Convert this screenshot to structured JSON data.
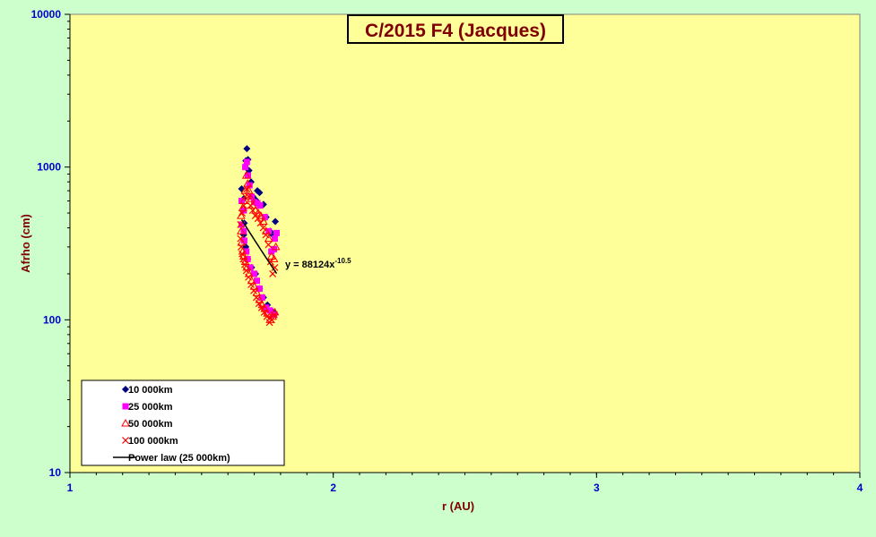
{
  "chart_data": {
    "type": "scatter",
    "title": "C/2015 F4 (Jacques)",
    "xlabel": "r (AU)",
    "ylabel": "Afrho (cm)",
    "xlim": [
      1,
      4
    ],
    "ylim": [
      10,
      10000
    ],
    "yscale": "log",
    "x_ticks": [
      "1",
      "2",
      "3",
      "4"
    ],
    "y_ticks": [
      "10",
      "100",
      "1000",
      "10000"
    ],
    "grid": false,
    "legend_position": "bottom-left",
    "colors": {
      "background": "#ccffcc",
      "plot_area": "#ffff99",
      "title_text": "#800000",
      "tick_text": "#0000cc"
    },
    "series": [
      {
        "name": "10 000km",
        "marker": "diamond",
        "color": "#000080",
        "points": [
          [
            1.652,
            720
          ],
          [
            1.66,
            620
          ],
          [
            1.668,
            1100
          ],
          [
            1.672,
            1320
          ],
          [
            1.676,
            1120
          ],
          [
            1.68,
            950
          ],
          [
            1.688,
            800
          ],
          [
            1.695,
            640
          ],
          [
            1.705,
            610
          ],
          [
            1.712,
            700
          ],
          [
            1.72,
            680
          ],
          [
            1.735,
            570
          ],
          [
            1.745,
            470
          ],
          [
            1.76,
            380
          ],
          [
            1.78,
            440
          ],
          [
            1.77,
            360
          ],
          [
            1.662,
            430
          ],
          [
            1.66,
            360
          ],
          [
            1.668,
            300
          ],
          [
            1.675,
            250
          ],
          [
            1.69,
            220
          ],
          [
            1.705,
            200
          ],
          [
            1.72,
            160
          ],
          [
            1.735,
            140
          ],
          [
            1.75,
            125
          ],
          [
            1.765,
            115
          ],
          [
            1.778,
            110
          ]
        ]
      },
      {
        "name": "25 000km",
        "marker": "square",
        "color": "#ff00ff",
        "points": [
          [
            1.652,
            600
          ],
          [
            1.66,
            520
          ],
          [
            1.666,
            1000
          ],
          [
            1.672,
            1080
          ],
          [
            1.676,
            880
          ],
          [
            1.682,
            760
          ],
          [
            1.69,
            640
          ],
          [
            1.7,
            590
          ],
          [
            1.712,
            580
          ],
          [
            1.722,
            560
          ],
          [
            1.74,
            470
          ],
          [
            1.755,
            380
          ],
          [
            1.765,
            280
          ],
          [
            1.775,
            290
          ],
          [
            1.785,
            370
          ],
          [
            1.778,
            340
          ],
          [
            1.652,
            420
          ],
          [
            1.66,
            380
          ],
          [
            1.662,
            330
          ],
          [
            1.67,
            280
          ],
          [
            1.675,
            250
          ],
          [
            1.685,
            220
          ],
          [
            1.7,
            200
          ],
          [
            1.71,
            180
          ],
          [
            1.72,
            160
          ],
          [
            1.73,
            140
          ],
          [
            1.745,
            120
          ],
          [
            1.76,
            115
          ],
          [
            1.775,
            108
          ]
        ]
      },
      {
        "name": "50 000km",
        "marker": "triangle",
        "color": "#ff0000",
        "points": [
          [
            1.65,
            480
          ],
          [
            1.656,
            540
          ],
          [
            1.66,
            600
          ],
          [
            1.665,
            700
          ],
          [
            1.67,
            880
          ],
          [
            1.675,
            780
          ],
          [
            1.68,
            700
          ],
          [
            1.688,
            620
          ],
          [
            1.695,
            560
          ],
          [
            1.705,
            520
          ],
          [
            1.715,
            500
          ],
          [
            1.725,
            480
          ],
          [
            1.735,
            440
          ],
          [
            1.745,
            380
          ],
          [
            1.755,
            340
          ],
          [
            1.765,
            260
          ],
          [
            1.775,
            250
          ],
          [
            1.782,
            300
          ],
          [
            1.65,
            380
          ],
          [
            1.652,
            320
          ],
          [
            1.656,
            280
          ],
          [
            1.66,
            260
          ],
          [
            1.666,
            240
          ],
          [
            1.672,
            220
          ],
          [
            1.68,
            200
          ],
          [
            1.69,
            180
          ],
          [
            1.7,
            165
          ],
          [
            1.71,
            150
          ],
          [
            1.72,
            135
          ],
          [
            1.73,
            125
          ],
          [
            1.74,
            118
          ],
          [
            1.75,
            110
          ],
          [
            1.76,
            100
          ],
          [
            1.77,
            105
          ],
          [
            1.778,
            112
          ]
        ]
      },
      {
        "name": "100 000km",
        "marker": "cross",
        "color": "#ff0000",
        "points": [
          [
            1.648,
            420
          ],
          [
            1.654,
            500
          ],
          [
            1.66,
            560
          ],
          [
            1.666,
            640
          ],
          [
            1.672,
            720
          ],
          [
            1.678,
            640
          ],
          [
            1.686,
            560
          ],
          [
            1.694,
            520
          ],
          [
            1.704,
            480
          ],
          [
            1.714,
            460
          ],
          [
            1.724,
            430
          ],
          [
            1.734,
            400
          ],
          [
            1.744,
            360
          ],
          [
            1.754,
            310
          ],
          [
            1.762,
            240
          ],
          [
            1.77,
            200
          ],
          [
            1.778,
            220
          ],
          [
            1.648,
            340
          ],
          [
            1.65,
            300
          ],
          [
            1.654,
            270
          ],
          [
            1.658,
            250
          ],
          [
            1.664,
            230
          ],
          [
            1.67,
            210
          ],
          [
            1.678,
            190
          ],
          [
            1.688,
            170
          ],
          [
            1.698,
            155
          ],
          [
            1.708,
            140
          ],
          [
            1.718,
            128
          ],
          [
            1.728,
            120
          ],
          [
            1.738,
            112
          ],
          [
            1.748,
            105
          ],
          [
            1.758,
            96
          ],
          [
            1.766,
            100
          ],
          [
            1.776,
            108
          ]
        ]
      }
    ],
    "power_law": {
      "name": "Power law (25 000km)",
      "coefficient": 88124,
      "exponent": -10.5,
      "x_range": [
        1.652,
        1.785
      ],
      "equation_prefix": "y = 88124x",
      "equation_exponent": "-10.5"
    }
  }
}
